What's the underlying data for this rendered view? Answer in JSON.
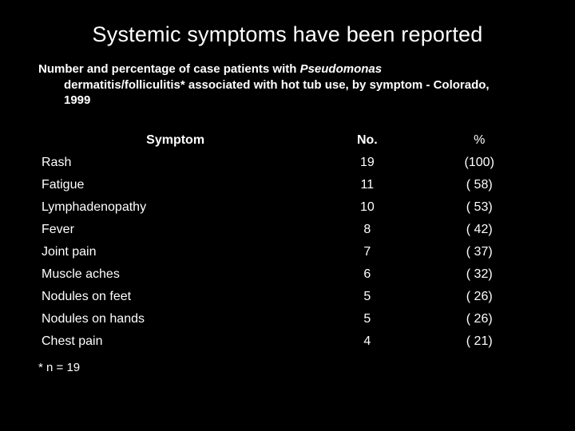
{
  "colors": {
    "background": "#000000",
    "text": "#ffffff"
  },
  "typography": {
    "title_fontsize": 27,
    "subtitle_fontsize": 15,
    "header_fontsize": 17,
    "pct_header_fontsize": 22,
    "body_fontsize": 16,
    "footnote_fontsize": 15,
    "font_family": "Arial"
  },
  "title": "Systemic symptoms have been reported",
  "subtitle_lead": "Number and percentage of case patients with ",
  "subtitle_italic": "Pseudomonas",
  "subtitle_rest1": " dermatitis/folliculitis* associated with hot tub use, by symptom - Colorado,",
  "subtitle_rest2": " 1999",
  "table": {
    "type": "table",
    "column_widths_pct": [
      55,
      22,
      23
    ],
    "columns": [
      "Symptom",
      "No.",
      "%"
    ],
    "alignment": [
      "left",
      "center",
      "center"
    ],
    "rows": [
      {
        "symptom": "Rash",
        "no": "19",
        "pct": "(100)"
      },
      {
        "symptom": "Fatigue",
        "no": "11",
        "pct": "( 58)"
      },
      {
        "symptom": "Lymphadenopathy",
        "no": "10",
        "pct": "( 53)"
      },
      {
        "symptom": "Fever",
        "no": "8",
        "pct": "( 42)"
      },
      {
        "symptom": "Joint pain",
        "no": "7",
        "pct": "( 37)"
      },
      {
        "symptom": "Muscle aches",
        "no": "6",
        "pct": "( 32)"
      },
      {
        "symptom": "Nodules on feet",
        "no": "5",
        "pct": "( 26)"
      },
      {
        "symptom": "Nodules on hands",
        "no": "5",
        "pct": "( 26)"
      },
      {
        "symptom": "Chest pain",
        "no": "4",
        "pct": "( 21)"
      }
    ]
  },
  "footnote": "* n = 19"
}
